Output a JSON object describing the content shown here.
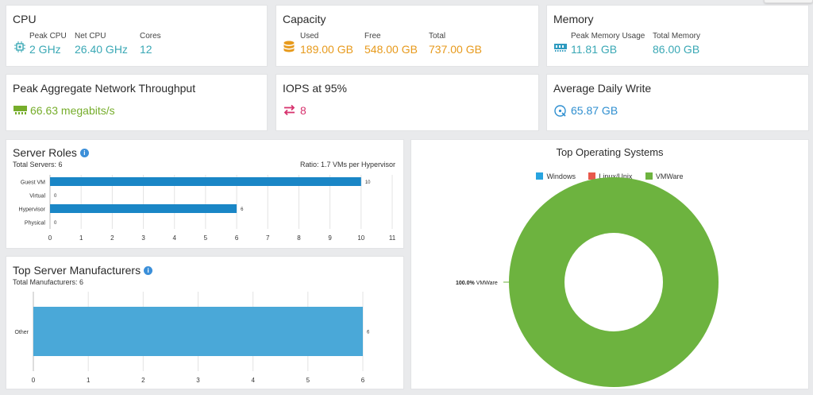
{
  "cpu": {
    "title": "CPU",
    "peak_label": "Peak CPU",
    "peak_value": "2 GHz",
    "net_label": "Net CPU",
    "net_value": "26.40 GHz",
    "cores_label": "Cores",
    "cores_value": "12",
    "icon": "cpu-chip-icon"
  },
  "capacity": {
    "title": "Capacity",
    "used_label": "Used",
    "used_value": "189.00 GB",
    "free_label": "Free",
    "free_value": "548.00 GB",
    "total_label": "Total",
    "total_value": "737.00 GB",
    "icon": "database-icon"
  },
  "memory": {
    "title": "Memory",
    "peak_label": "Peak Memory Usage",
    "peak_value": "11.81 GB",
    "total_label": "Total Memory",
    "total_value": "86.00 GB",
    "icon": "memory-module-icon"
  },
  "network": {
    "title": "Peak Aggregate Network Throughput",
    "value": "66.63 megabits/s",
    "icon": "network-card-icon"
  },
  "iops": {
    "title": "IOPS at 95%",
    "value": "8",
    "icon": "exchange-arrows-icon"
  },
  "daily_write": {
    "title": "Average Daily Write",
    "value": "65.87 GB",
    "icon": "disk-write-icon"
  },
  "colors": {
    "teal": "#3aa8b5",
    "orange": "#e79a1c",
    "green": "#76ad2b",
    "pink": "#d7336e",
    "bar_dark": "#1a86c6",
    "bar_light": "#4aa8d8",
    "windows": "#28a4e0",
    "linux": "#e8584b",
    "vmware": "#6db33f"
  },
  "server_roles": {
    "title": "Server Roles",
    "info_icon": "info-icon",
    "total_text": "Total Servers: 6",
    "ratio_text": "Ratio: 1.7 VMs per Hypervisor",
    "chart_data": {
      "type": "bar",
      "orientation": "horizontal",
      "categories": [
        "Guest VM",
        "Virtual",
        "Hypervisor",
        "Physical"
      ],
      "values": [
        10,
        0,
        6,
        0
      ],
      "xlim": [
        0,
        11
      ],
      "ticks": [
        "0",
        "1",
        "2",
        "3",
        "4",
        "5",
        "6",
        "7",
        "8",
        "9",
        "10",
        "11"
      ],
      "grid": true
    }
  },
  "manufacturers": {
    "title": "Top Server Manufacturers",
    "info_icon": "info-icon",
    "total_text": "Total Manufacturers: 6",
    "chart_data": {
      "type": "bar",
      "orientation": "horizontal",
      "categories": [
        "Other"
      ],
      "values": [
        6
      ],
      "xlim": [
        0,
        6
      ],
      "ticks": [
        "0",
        "1",
        "2",
        "3",
        "4",
        "5",
        "6"
      ],
      "grid": true
    }
  },
  "os": {
    "title": "Top Operating Systems",
    "legend": [
      "Windows",
      "Linux/Unix",
      "VMWare"
    ],
    "slice_label_pct": "100.0%",
    "slice_label_name": "VMWare",
    "chart_data": {
      "type": "pie",
      "donut": true,
      "categories": [
        "Windows",
        "Linux/Unix",
        "VMWare"
      ],
      "values": [
        0,
        0,
        100.0
      ],
      "legend_position": "top"
    }
  }
}
